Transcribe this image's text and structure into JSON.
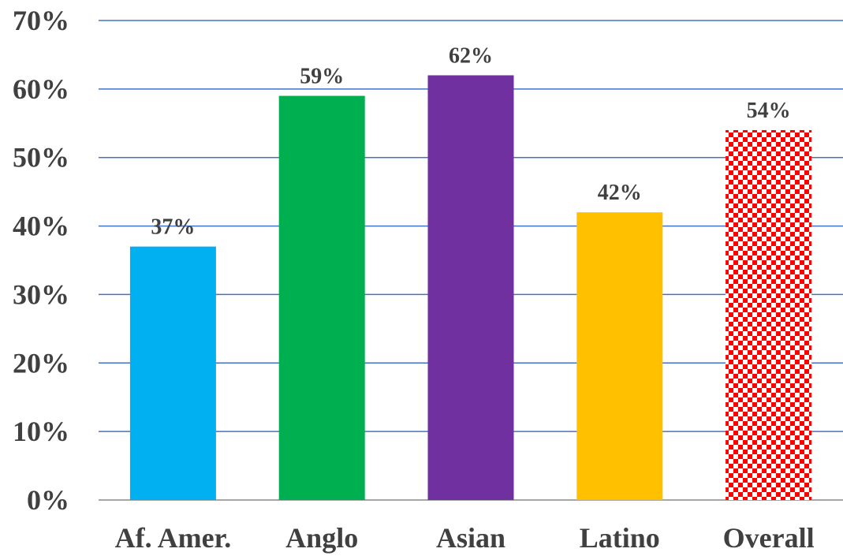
{
  "chart_data": {
    "type": "bar",
    "categories": [
      "Af. Amer.",
      "Anglo",
      "Asian",
      "Latino",
      "Overall"
    ],
    "values": [
      37,
      59,
      62,
      42,
      54
    ],
    "data_labels": [
      "37%",
      "59%",
      "62%",
      "42%",
      "54%"
    ],
    "colors": [
      "#00B0F0",
      "#00B050",
      "#7030A0",
      "#FFC000",
      "#FF0000"
    ],
    "patterns": [
      "solid",
      "solid",
      "solid",
      "solid",
      "checkerboard"
    ],
    "y_ticks": [
      0,
      10,
      20,
      30,
      40,
      50,
      60,
      70
    ],
    "y_tick_labels": [
      "0%",
      "10%",
      "20%",
      "30%",
      "40%",
      "50%",
      "60%",
      "70%"
    ],
    "ylim": [
      0,
      70
    ],
    "grid": true,
    "grid_color": "#4472C4",
    "legend": "none",
    "title": "",
    "xlabel": "",
    "ylabel": ""
  }
}
